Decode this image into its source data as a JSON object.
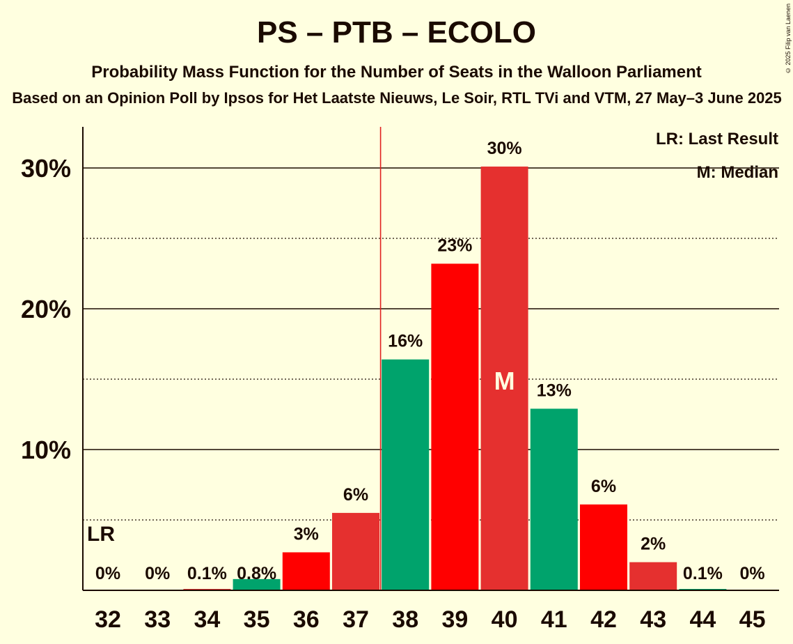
{
  "title": "PS – PTB – ECOLO",
  "subtitle": "Probability Mass Function for the Number of Seats in the Walloon Parliament",
  "source": "Based on an Opinion Poll by Ipsos for Het Laatste Nieuws, Le Soir, RTL TVi and VTM, 27 May–3 June 2025",
  "copyright": "© 2025 Filip van Laenen",
  "legend": {
    "lr": "LR: Last Result",
    "m": "M: Median"
  },
  "chart_data": {
    "type": "bar",
    "title": "PS – PTB – ECOLO",
    "categories": [
      "32",
      "33",
      "34",
      "35",
      "36",
      "37",
      "38",
      "39",
      "40",
      "41",
      "42",
      "43",
      "44",
      "45"
    ],
    "values": [
      0,
      0,
      0.1,
      0.8,
      2.7,
      5.5,
      16.4,
      23.2,
      30.1,
      12.9,
      6.1,
      2.0,
      0.1,
      0
    ],
    "labels": [
      "0%",
      "0%",
      "0.1%",
      "0.8%",
      "3%",
      "6%",
      "16%",
      "23%",
      "30%",
      "13%",
      "6%",
      "2%",
      "0.1%",
      "0%"
    ],
    "colors": [
      "#00A36C",
      "#FF0000",
      "#E5302F",
      "#00A36C",
      "#FF0000",
      "#E5302F",
      "#00A36C",
      "#FF0000",
      "#E5302F",
      "#00A36C",
      "#FF0000",
      "#E5302F",
      "#00A36C",
      "#FF0000"
    ],
    "yticks": [
      "10%",
      "20%",
      "30%"
    ],
    "ylim": [
      0,
      32.8
    ],
    "last_result": "32",
    "last_result_label": "LR",
    "median": "40",
    "median_label": "M",
    "majority_line_after": "37",
    "xlabel": "",
    "ylabel": ""
  }
}
